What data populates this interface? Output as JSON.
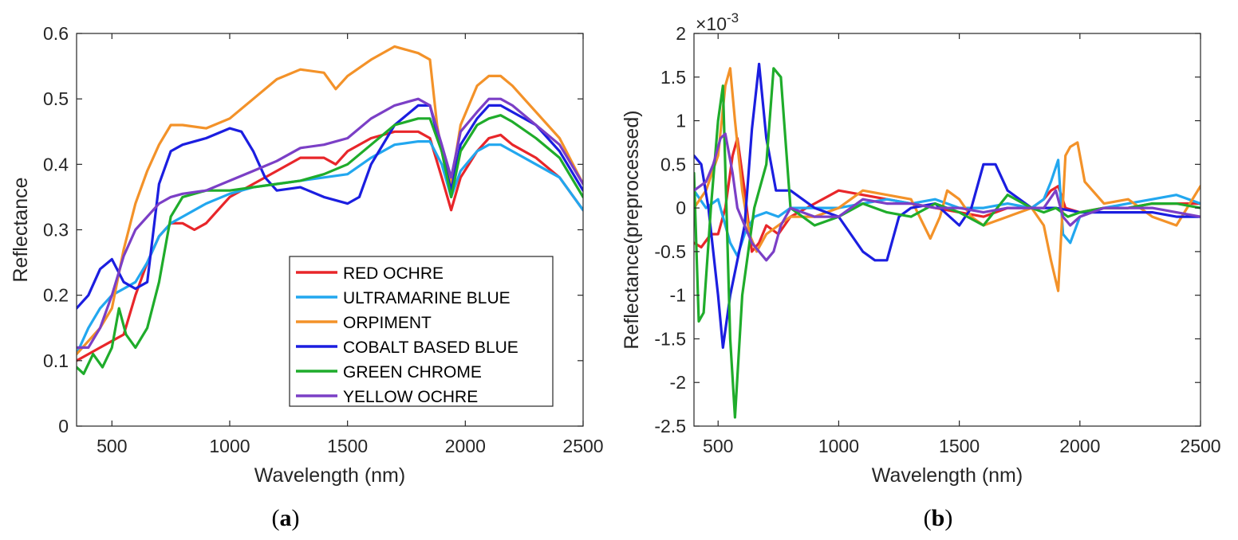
{
  "chart_data": [
    {
      "type": "line",
      "panel_label": {
        "open": "(",
        "letter": "a",
        "close": ")"
      },
      "title": "",
      "xlabel": "Wavelength (nm)",
      "ylabel": "Reflectance",
      "xlim": [
        350,
        2500
      ],
      "ylim": [
        0,
        0.6
      ],
      "xticks": [
        500,
        1000,
        1500,
        2000,
        2500
      ],
      "yticks": [
        0,
        0.1,
        0.2,
        0.3,
        0.4,
        0.5,
        0.6
      ],
      "xtick_labels": [
        "500",
        "1000",
        "1500",
        "2000",
        "2500"
      ],
      "ytick_labels": [
        "0",
        "0.1",
        "0.2",
        "0.3",
        "0.4",
        "0.5",
        "0.6"
      ],
      "legend_position": "bottom-center",
      "series": [
        {
          "name": "RED OCHRE",
          "color": "#e8262a",
          "x": [
            350,
            400,
            450,
            500,
            550,
            600,
            650,
            700,
            750,
            800,
            850,
            900,
            950,
            1000,
            1100,
            1200,
            1300,
            1400,
            1450,
            1500,
            1600,
            1700,
            1800,
            1850,
            1900,
            1940,
            1980,
            2050,
            2100,
            2150,
            2200,
            2300,
            2400,
            2500
          ],
          "y": [
            0.1,
            0.11,
            0.12,
            0.13,
            0.14,
            0.2,
            0.25,
            0.29,
            0.31,
            0.31,
            0.3,
            0.31,
            0.33,
            0.35,
            0.37,
            0.39,
            0.41,
            0.41,
            0.4,
            0.42,
            0.44,
            0.45,
            0.45,
            0.44,
            0.38,
            0.33,
            0.38,
            0.42,
            0.44,
            0.445,
            0.43,
            0.41,
            0.38,
            0.33
          ]
        },
        {
          "name": "ULTRAMARINE BLUE",
          "color": "#22a7ef",
          "x": [
            350,
            400,
            450,
            500,
            550,
            600,
            650,
            700,
            750,
            800,
            900,
            1000,
            1100,
            1200,
            1300,
            1400,
            1500,
            1600,
            1700,
            1800,
            1850,
            1900,
            1940,
            1980,
            2050,
            2100,
            2150,
            2200,
            2300,
            2400,
            2500
          ],
          "y": [
            0.11,
            0.15,
            0.18,
            0.2,
            0.21,
            0.22,
            0.25,
            0.29,
            0.31,
            0.32,
            0.34,
            0.355,
            0.365,
            0.37,
            0.375,
            0.38,
            0.385,
            0.41,
            0.43,
            0.435,
            0.435,
            0.4,
            0.35,
            0.39,
            0.42,
            0.43,
            0.43,
            0.42,
            0.4,
            0.38,
            0.33
          ]
        },
        {
          "name": "ORPIMENT",
          "color": "#f39229",
          "x": [
            350,
            400,
            450,
            500,
            550,
            600,
            650,
            700,
            750,
            800,
            900,
            1000,
            1100,
            1200,
            1300,
            1400,
            1450,
            1500,
            1600,
            1700,
            1800,
            1850,
            1880,
            1900,
            1940,
            1980,
            2050,
            2100,
            2150,
            2200,
            2300,
            2400,
            2500
          ],
          "y": [
            0.11,
            0.13,
            0.15,
            0.18,
            0.27,
            0.34,
            0.39,
            0.43,
            0.46,
            0.46,
            0.455,
            0.47,
            0.5,
            0.53,
            0.545,
            0.54,
            0.515,
            0.535,
            0.56,
            0.58,
            0.57,
            0.56,
            0.46,
            0.42,
            0.37,
            0.46,
            0.52,
            0.535,
            0.535,
            0.52,
            0.48,
            0.44,
            0.37
          ]
        },
        {
          "name": "COBALT BASED BLUE",
          "color": "#1b1ee0",
          "x": [
            350,
            400,
            450,
            500,
            550,
            600,
            650,
            700,
            750,
            800,
            900,
            1000,
            1050,
            1100,
            1150,
            1200,
            1300,
            1400,
            1500,
            1550,
            1600,
            1700,
            1800,
            1850,
            1900,
            1940,
            1980,
            2050,
            2100,
            2150,
            2200,
            2300,
            2400,
            2500
          ],
          "y": [
            0.18,
            0.2,
            0.24,
            0.255,
            0.22,
            0.21,
            0.22,
            0.37,
            0.42,
            0.43,
            0.44,
            0.455,
            0.45,
            0.42,
            0.38,
            0.36,
            0.365,
            0.35,
            0.34,
            0.35,
            0.4,
            0.46,
            0.49,
            0.49,
            0.42,
            0.36,
            0.43,
            0.47,
            0.49,
            0.49,
            0.48,
            0.46,
            0.42,
            0.36
          ]
        },
        {
          "name": "GREEN CHROME",
          "color": "#1fac2b",
          "x": [
            350,
            380,
            420,
            460,
            500,
            530,
            560,
            600,
            650,
            700,
            750,
            800,
            900,
            1000,
            1100,
            1200,
            1300,
            1400,
            1500,
            1600,
            1700,
            1800,
            1850,
            1900,
            1940,
            1980,
            2050,
            2100,
            2150,
            2200,
            2300,
            2400,
            2500
          ],
          "y": [
            0.09,
            0.08,
            0.11,
            0.09,
            0.12,
            0.18,
            0.14,
            0.12,
            0.15,
            0.22,
            0.32,
            0.35,
            0.36,
            0.36,
            0.365,
            0.37,
            0.375,
            0.385,
            0.4,
            0.43,
            0.46,
            0.47,
            0.47,
            0.42,
            0.35,
            0.42,
            0.46,
            0.47,
            0.475,
            0.465,
            0.44,
            0.41,
            0.35
          ]
        },
        {
          "name": "YELLOW OCHRE",
          "color": "#7b3fc6",
          "x": [
            350,
            400,
            450,
            500,
            550,
            600,
            650,
            700,
            750,
            800,
            900,
            1000,
            1100,
            1200,
            1300,
            1400,
            1500,
            1600,
            1700,
            1800,
            1850,
            1900,
            1940,
            1980,
            2050,
            2100,
            2150,
            2200,
            2300,
            2400,
            2500
          ],
          "y": [
            0.12,
            0.12,
            0.15,
            0.2,
            0.26,
            0.3,
            0.32,
            0.34,
            0.35,
            0.355,
            0.36,
            0.375,
            0.39,
            0.405,
            0.425,
            0.43,
            0.44,
            0.47,
            0.49,
            0.5,
            0.49,
            0.43,
            0.38,
            0.45,
            0.48,
            0.5,
            0.5,
            0.49,
            0.46,
            0.43,
            0.37
          ]
        }
      ]
    },
    {
      "type": "line",
      "panel_label": {
        "open": "(",
        "letter": "b",
        "close": ")"
      },
      "title": "",
      "xlabel": "Wavelength (nm)",
      "ylabel": "Reflectance(preprocessed)",
      "exponent_label": {
        "times": "×10",
        "power": "-3"
      },
      "xlim": [
        400,
        2500
      ],
      "ylim": [
        -2.5,
        2
      ],
      "xticks": [
        500,
        1000,
        1500,
        2000,
        2500
      ],
      "yticks": [
        -2.5,
        -2,
        -1.5,
        -1,
        -0.5,
        0,
        0.5,
        1,
        1.5,
        2
      ],
      "xtick_labels": [
        "500",
        "1000",
        "1500",
        "2000",
        "2500"
      ],
      "ytick_labels": [
        "-2.5",
        "-2",
        "-1.5",
        "-1",
        "-0.5",
        "0",
        "0.5",
        "1",
        "1.5",
        "2"
      ],
      "series": [
        {
          "name": "RED OCHRE",
          "color": "#e8262a",
          "x": [
            400,
            430,
            470,
            500,
            530,
            560,
            580,
            610,
            640,
            670,
            700,
            750,
            800,
            900,
            1000,
            1100,
            1200,
            1300,
            1400,
            1500,
            1600,
            1700,
            1800,
            1850,
            1880,
            1910,
            1940,
            2000,
            2100,
            2200,
            2300,
            2400,
            2500
          ],
          "y": [
            -0.4,
            -0.45,
            -0.3,
            -0.3,
            0.0,
            0.6,
            0.8,
            0.2,
            -0.5,
            -0.4,
            -0.2,
            -0.3,
            -0.1,
            0.05,
            0.2,
            0.15,
            0.1,
            0.05,
            0.0,
            -0.05,
            -0.1,
            0.0,
            0.0,
            0.1,
            0.2,
            0.25,
            0.0,
            -0.05,
            0.0,
            0.0,
            0.05,
            0.05,
            0.05
          ]
        },
        {
          "name": "ULTRAMARINE BLUE",
          "color": "#22a7ef",
          "x": [
            400,
            450,
            500,
            550,
            580,
            610,
            650,
            700,
            750,
            800,
            900,
            1000,
            1100,
            1200,
            1300,
            1400,
            1500,
            1600,
            1700,
            1800,
            1850,
            1880,
            1910,
            1930,
            1960,
            2000,
            2100,
            2200,
            2300,
            2400,
            2500
          ],
          "y": [
            0.2,
            0.0,
            0.1,
            -0.4,
            -0.55,
            -0.3,
            -0.1,
            -0.05,
            -0.1,
            0.0,
            0.0,
            0.0,
            0.05,
            0.1,
            0.05,
            0.1,
            0.0,
            0.0,
            0.05,
            0.0,
            0.1,
            0.3,
            0.55,
            -0.3,
            -0.4,
            -0.1,
            0.0,
            0.05,
            0.1,
            0.15,
            0.05
          ]
        },
        {
          "name": "ORPIMENT",
          "color": "#f39229",
          "x": [
            400,
            450,
            500,
            530,
            550,
            570,
            600,
            630,
            660,
            700,
            750,
            800,
            900,
            1000,
            1100,
            1200,
            1300,
            1380,
            1420,
            1450,
            1500,
            1550,
            1600,
            1700,
            1800,
            1850,
            1880,
            1910,
            1940,
            1960,
            1990,
            2020,
            2100,
            2200,
            2300,
            2400,
            2500
          ],
          "y": [
            0.0,
            0.2,
            0.6,
            1.4,
            1.6,
            1.0,
            0.2,
            -0.3,
            -0.5,
            -0.3,
            -0.2,
            -0.1,
            -0.1,
            0.0,
            0.2,
            0.15,
            0.1,
            -0.35,
            -0.1,
            0.2,
            0.1,
            -0.1,
            -0.2,
            -0.1,
            0.0,
            -0.2,
            -0.6,
            -0.95,
            0.6,
            0.7,
            0.75,
            0.3,
            0.05,
            0.1,
            -0.1,
            -0.2,
            0.25
          ]
        },
        {
          "name": "COBALT BASED BLUE",
          "color": "#1b1ee0",
          "x": [
            400,
            430,
            460,
            500,
            520,
            550,
            580,
            610,
            640,
            670,
            700,
            740,
            800,
            900,
            1000,
            1100,
            1150,
            1200,
            1250,
            1300,
            1400,
            1500,
            1550,
            1600,
            1650,
            1700,
            1800,
            1900,
            2000,
            2100,
            2200,
            2300,
            2400,
            2500
          ],
          "y": [
            0.6,
            0.5,
            0.0,
            -1.0,
            -1.6,
            -1.0,
            -0.6,
            -0.2,
            0.9,
            1.65,
            0.8,
            0.2,
            0.2,
            0.0,
            -0.1,
            -0.5,
            -0.6,
            -0.6,
            -0.1,
            0.0,
            0.05,
            -0.2,
            0.0,
            0.5,
            0.5,
            0.2,
            0.0,
            0.0,
            -0.05,
            -0.05,
            -0.05,
            -0.05,
            -0.1,
            -0.1
          ]
        },
        {
          "name": "GREEN CHROME",
          "color": "#1fac2b",
          "x": [
            400,
            420,
            440,
            470,
            500,
            520,
            550,
            570,
            600,
            650,
            700,
            730,
            760,
            800,
            900,
            1000,
            1100,
            1200,
            1300,
            1400,
            1500,
            1600,
            1700,
            1800,
            1850,
            1900,
            1950,
            2000,
            2100,
            2200,
            2300,
            2400,
            2500
          ],
          "y": [
            0.4,
            -1.3,
            -1.2,
            0.0,
            1.0,
            1.4,
            -1.5,
            -2.4,
            -1.0,
            0.0,
            0.5,
            1.6,
            1.5,
            0.0,
            -0.2,
            -0.1,
            0.05,
            -0.05,
            -0.1,
            0.05,
            -0.05,
            -0.2,
            0.15,
            0.0,
            -0.05,
            0.0,
            -0.1,
            -0.05,
            0.0,
            0.0,
            0.05,
            0.05,
            0.0
          ]
        },
        {
          "name": "YELLOW OCHRE",
          "color": "#7b3fc6",
          "x": [
            400,
            450,
            480,
            510,
            530,
            560,
            580,
            610,
            640,
            670,
            700,
            730,
            760,
            800,
            900,
            1000,
            1100,
            1200,
            1300,
            1400,
            1500,
            1600,
            1700,
            1800,
            1850,
            1900,
            1930,
            1960,
            2000,
            2100,
            2200,
            2300,
            2400,
            2500
          ],
          "y": [
            0.2,
            0.3,
            0.5,
            0.8,
            0.85,
            0.4,
            0.0,
            -0.2,
            -0.4,
            -0.5,
            -0.6,
            -0.5,
            -0.2,
            0.0,
            -0.1,
            -0.1,
            0.1,
            0.05,
            0.05,
            0.0,
            0.0,
            -0.05,
            0.0,
            0.0,
            0.0,
            0.2,
            -0.1,
            -0.2,
            -0.1,
            0.0,
            0.0,
            0.0,
            -0.05,
            -0.1
          ]
        }
      ]
    }
  ]
}
